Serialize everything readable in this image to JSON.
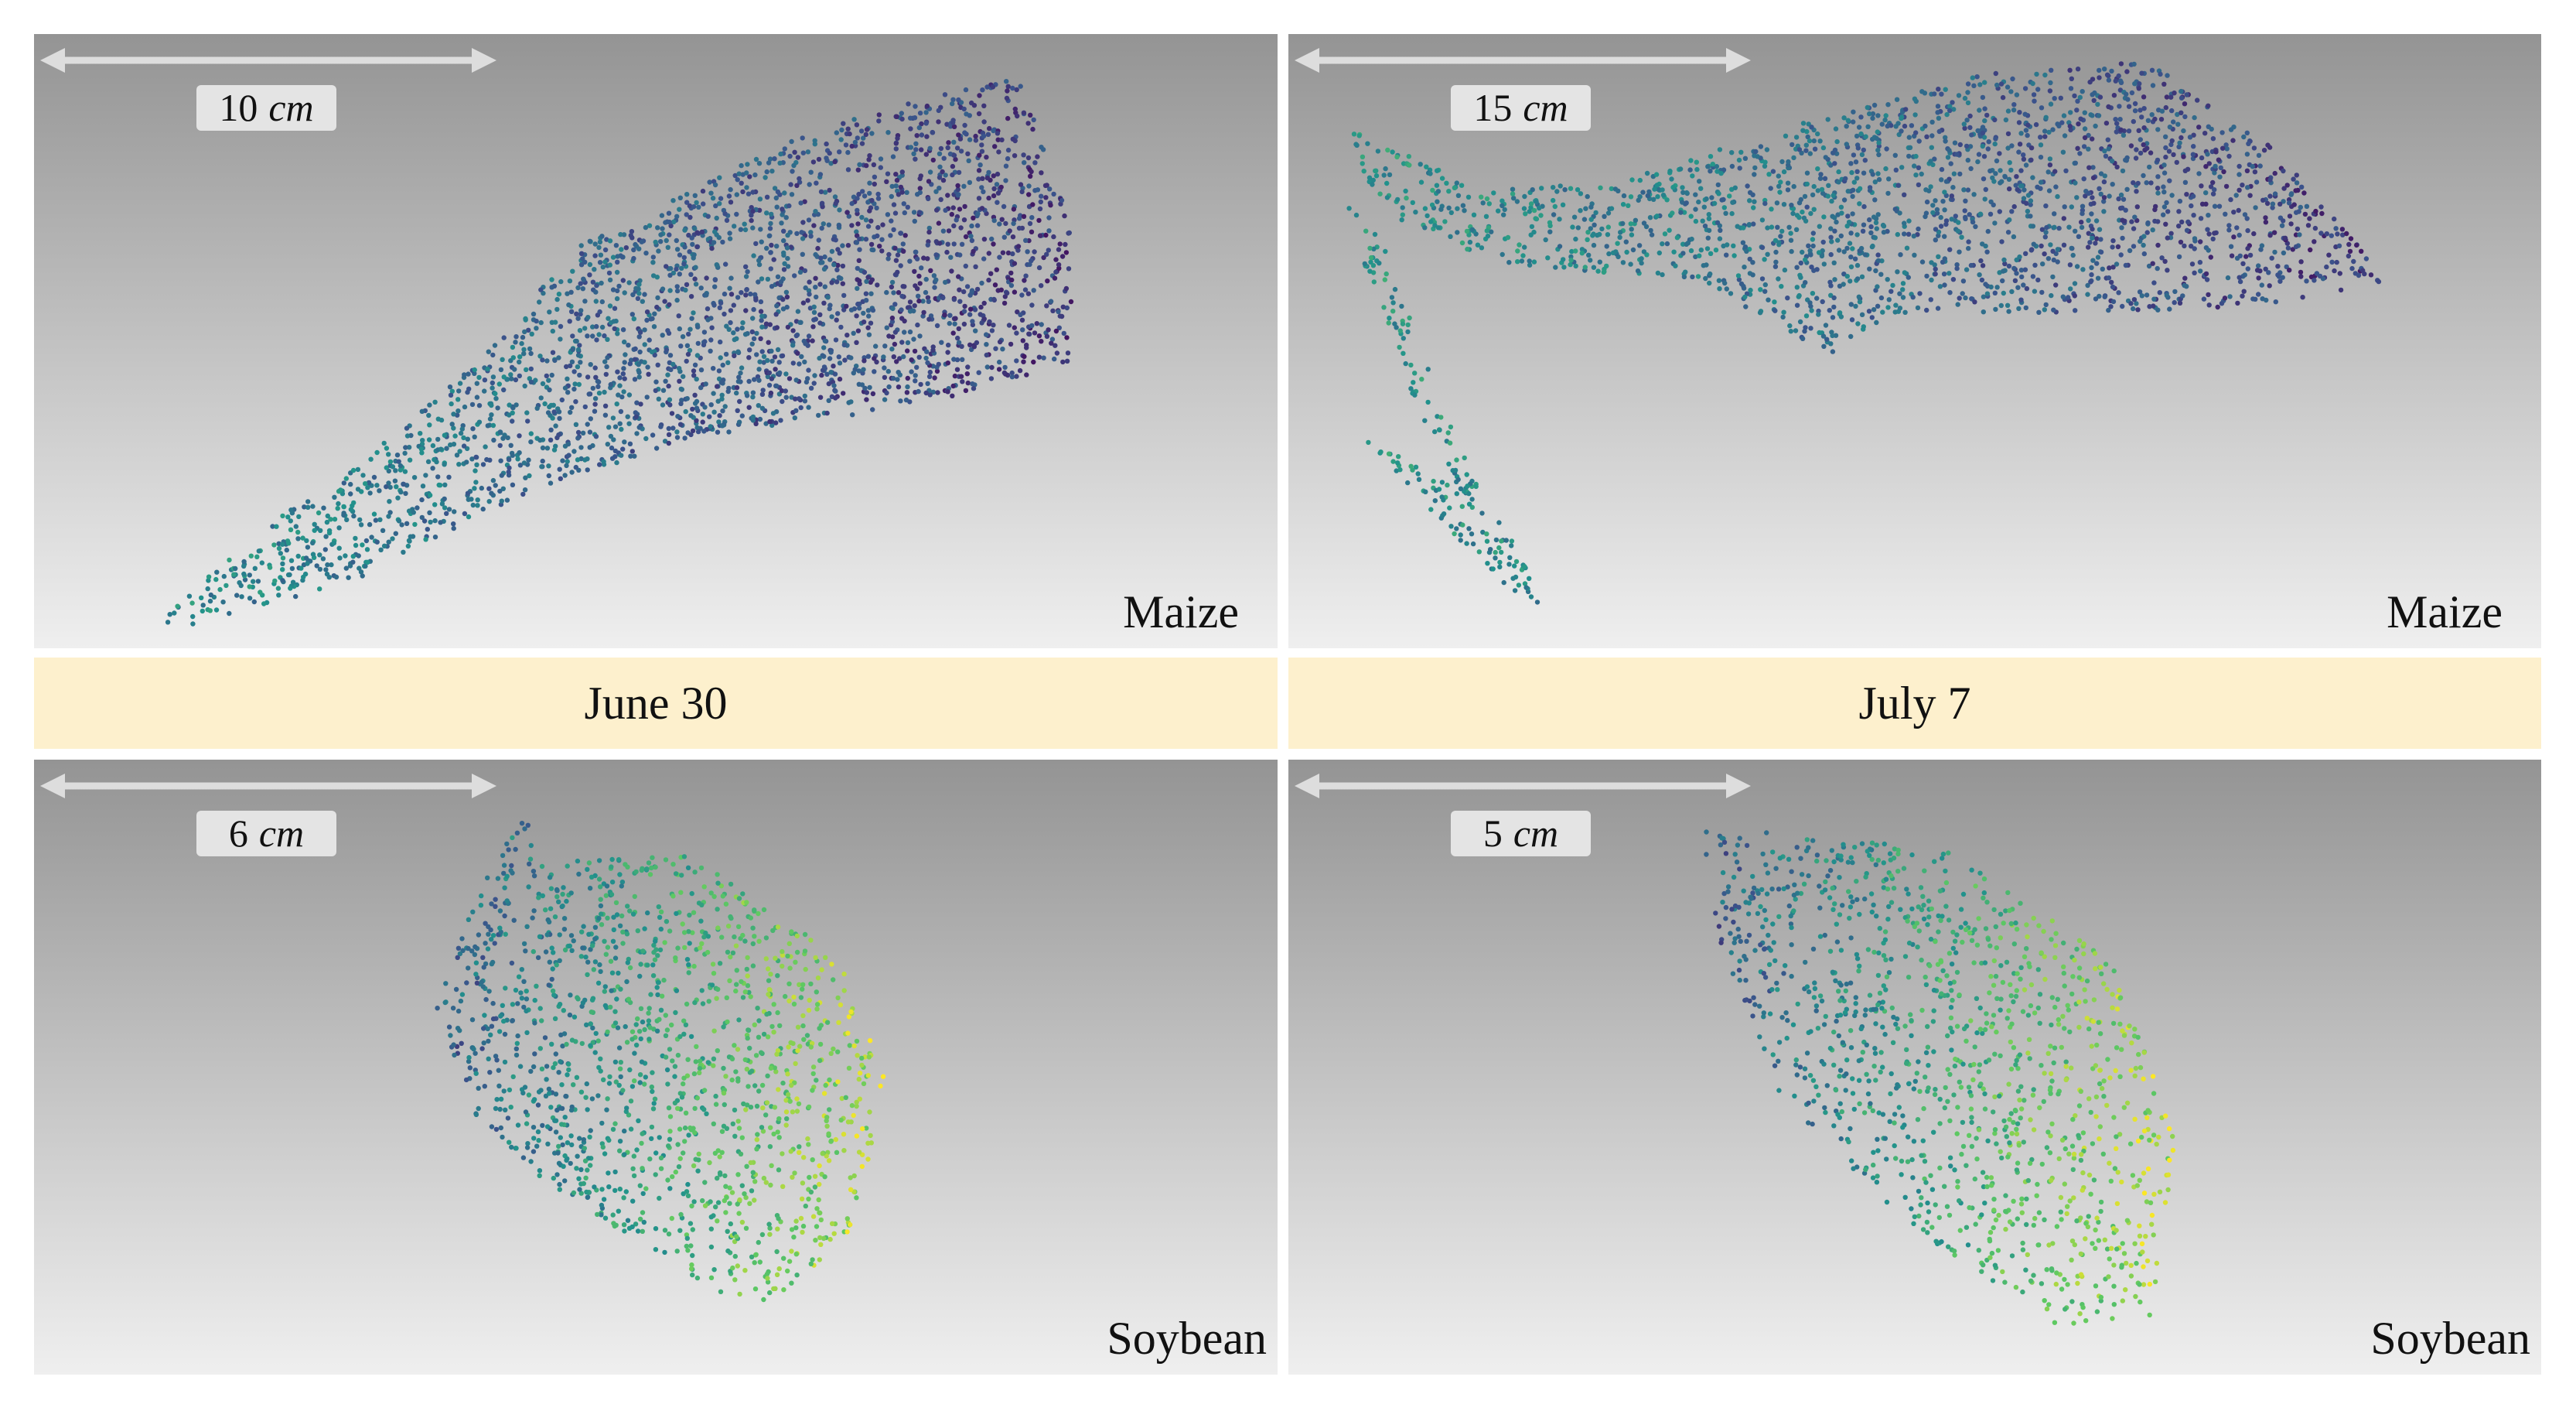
{
  "panels": [
    {
      "scale": {
        "number": "10",
        "unit": "cm"
      },
      "species": "Maize"
    },
    {
      "scale": {
        "number": "15",
        "unit": "cm"
      },
      "species": "Maize"
    },
    {
      "scale": {
        "number": "6",
        "unit": "cm"
      },
      "species": "Soybean"
    },
    {
      "scale": {
        "number": "5",
        "unit": "cm"
      },
      "species": "Soybean"
    }
  ],
  "dates": [
    "June 30",
    "July 7"
  ]
}
